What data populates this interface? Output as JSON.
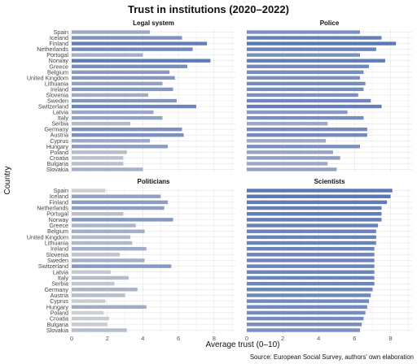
{
  "chart_data": {
    "type": "bar",
    "orientation": "horizontal",
    "title": "Trust in institutions (2020–2022)",
    "xlabel": "Average trust (0–10)",
    "ylabel": "Country",
    "caption": "Source: European Social Survey, authors' own elaboration",
    "xlim": [
      0,
      9.2
    ],
    "xticks": [
      0,
      2,
      4,
      6,
      8
    ],
    "grid": true,
    "color_scale": {
      "low": "#d3d3d3",
      "high": "#5b78b6"
    },
    "categories": [
      "Spain",
      "Iceland",
      "Finland",
      "Netherlands",
      "Portugal",
      "Norway",
      "Greece",
      "Belgium",
      "United Kingdom",
      "Lithuania",
      "Ireland",
      "Slovenia",
      "Sweden",
      "Switzerland",
      "Latvia",
      "Italy",
      "Serbia",
      "Germany",
      "Austria",
      "Cyprus",
      "Hungary",
      "Poland",
      "Croatia",
      "Bulgaria",
      "Slovakia"
    ],
    "panels": [
      {
        "name": "Legal system",
        "values": [
          4.4,
          6.2,
          7.6,
          6.8,
          4.0,
          7.8,
          6.5,
          5.5,
          5.8,
          5.1,
          5.7,
          4.3,
          5.9,
          7.0,
          4.6,
          5.1,
          3.3,
          6.2,
          6.3,
          4.4,
          5.4,
          3.1,
          2.9,
          2.9,
          4.0
        ]
      },
      {
        "name": "Police",
        "values": [
          6.3,
          7.5,
          8.3,
          7.2,
          6.3,
          7.7,
          6.8,
          6.5,
          6.3,
          6.6,
          6.5,
          6.2,
          6.9,
          7.5,
          5.6,
          6.5,
          4.5,
          6.7,
          6.7,
          4.4,
          6.3,
          4.8,
          5.2,
          4.5,
          5.0
        ]
      },
      {
        "name": "Politicians",
        "values": [
          1.9,
          5.0,
          5.4,
          5.2,
          2.9,
          5.7,
          3.6,
          4.1,
          3.3,
          3.4,
          4.2,
          2.7,
          4.1,
          5.6,
          2.2,
          3.2,
          2.4,
          3.7,
          3.0,
          1.9,
          4.2,
          1.8,
          2.1,
          2.0,
          3.1
        ]
      },
      {
        "name": "Scientists",
        "values": [
          8.1,
          8.0,
          7.8,
          7.5,
          7.5,
          7.5,
          7.3,
          7.2,
          7.2,
          7.2,
          7.1,
          7.1,
          7.1,
          7.1,
          7.1,
          7.1,
          7.1,
          7.0,
          6.9,
          6.8,
          6.7,
          6.6,
          6.5,
          6.4,
          6.3
        ]
      }
    ]
  }
}
